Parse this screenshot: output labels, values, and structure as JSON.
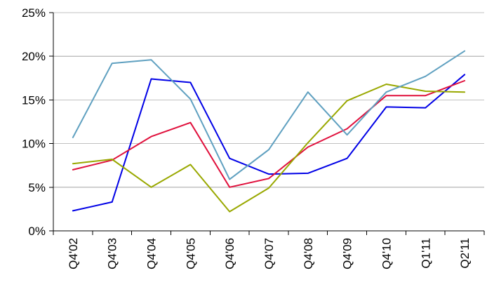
{
  "chart_data": {
    "type": "line",
    "categories": [
      "Q4'02",
      "Q4'03",
      "Q4'04",
      "Q4'05",
      "Q4'06",
      "Q4'07",
      "Q4'08",
      "Q4'09",
      "Q4'10",
      "Q1'11",
      "Q2'11"
    ],
    "ylim": [
      0,
      25
    ],
    "yticks": [
      0,
      5,
      10,
      15,
      20,
      25
    ],
    "ytick_labels": [
      "0%",
      "5%",
      "10%",
      "15%",
      "20%",
      "25%"
    ],
    "grid": "horizontal",
    "legend": "none",
    "series": [
      {
        "color": "#0000e6",
        "values": [
          2.3,
          3.3,
          17.4,
          17.0,
          8.3,
          6.5,
          6.6,
          8.3,
          14.2,
          14.1,
          17.9
        ]
      },
      {
        "color": "#e0103c",
        "values": [
          7.0,
          8.1,
          10.8,
          12.4,
          5.0,
          6.0,
          9.6,
          11.7,
          15.5,
          15.5,
          17.2
        ]
      },
      {
        "color": "#99a800",
        "values": [
          7.7,
          8.2,
          5.0,
          7.6,
          2.2,
          4.9,
          10.1,
          14.9,
          16.8,
          16.0,
          15.9
        ]
      },
      {
        "color": "#5fa0c0",
        "values": [
          10.7,
          19.2,
          19.6,
          15.1,
          5.9,
          9.3,
          15.9,
          11.0,
          15.9,
          17.7,
          20.6
        ]
      }
    ]
  }
}
